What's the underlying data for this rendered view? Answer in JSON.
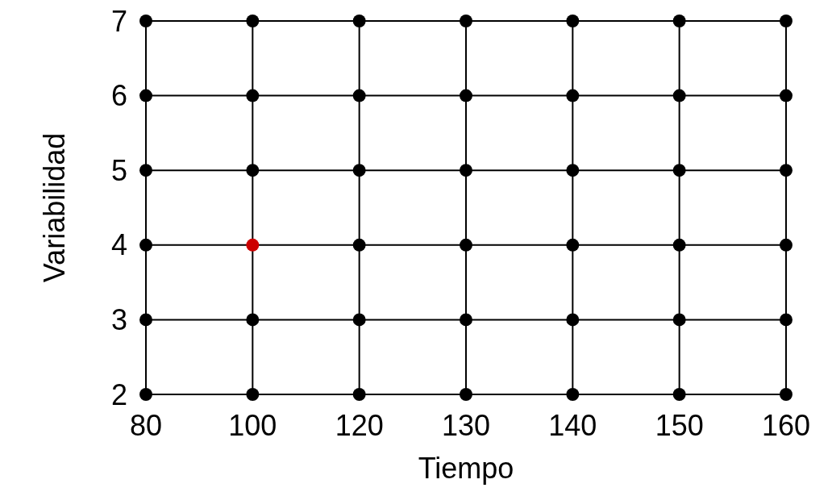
{
  "chart_data": {
    "type": "scatter",
    "xlabel": "Tiempo",
    "ylabel": "Variabilidad",
    "categories": [
      "80",
      "100",
      "120",
      "130",
      "140",
      "150",
      "160"
    ],
    "ylim": [
      2,
      7
    ],
    "yticks": [
      2,
      3,
      4,
      5,
      6,
      7
    ],
    "grid": true,
    "marker": "circle",
    "series": [
      {
        "color": "#000000",
        "values": [
          2,
          2,
          2,
          2,
          2,
          2,
          2
        ]
      },
      {
        "color": "#000000",
        "values": [
          3,
          3,
          3,
          3,
          3,
          3,
          3
        ]
      },
      {
        "color": "#000000",
        "values": [
          4,
          null,
          4,
          4,
          4,
          4,
          4
        ]
      },
      {
        "color": "#000000",
        "values": [
          5,
          5,
          5,
          5,
          5,
          5,
          5
        ]
      },
      {
        "color": "#000000",
        "values": [
          6,
          6,
          6,
          6,
          6,
          6,
          6
        ]
      },
      {
        "color": "#000000",
        "values": [
          7,
          7,
          7,
          7,
          7,
          7,
          7
        ]
      },
      {
        "color": "#cc0000",
        "x": [
          "100"
        ],
        "values": [
          4
        ]
      }
    ]
  }
}
